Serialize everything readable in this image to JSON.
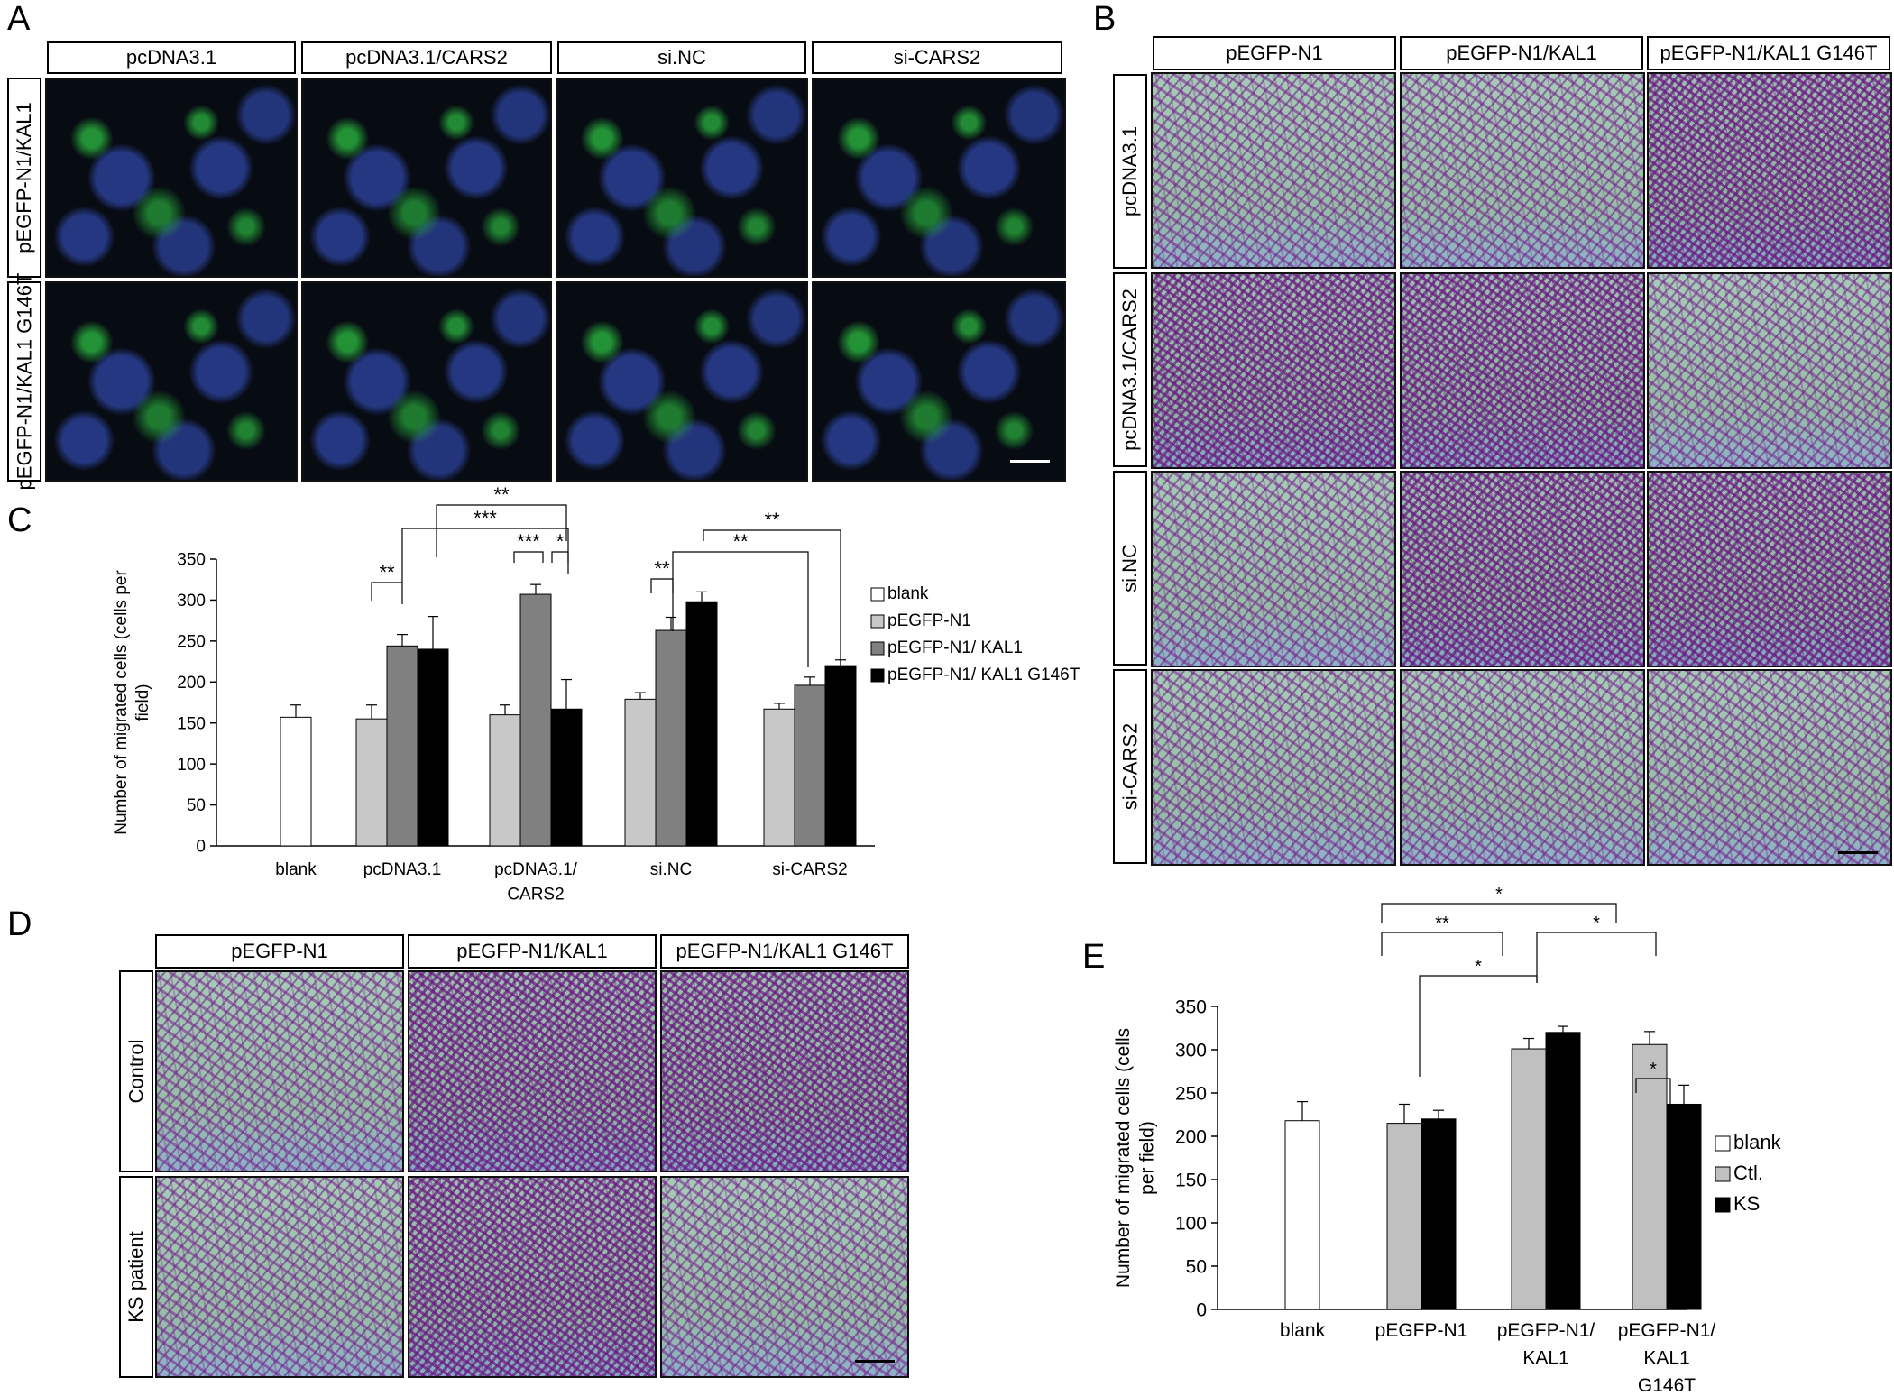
{
  "panels": {
    "A": {
      "label": "A",
      "columns": [
        "pcDNA3.1",
        "pcDNA3.1/CARS2",
        "si.NC",
        "si-CARS2"
      ],
      "rows": [
        "pEGFP-N1/KAL1",
        "pEGFP-N1/KAL1 G146T"
      ]
    },
    "B": {
      "label": "B",
      "columns": [
        "pEGFP-N1",
        "pEGFP-N1/KAL1",
        "pEGFP-N1/KAL1 G146T"
      ],
      "rows": [
        "pcDNA3.1",
        "pcDNA3.1/CARS2",
        "si.NC",
        "si-CARS2"
      ]
    },
    "C": {
      "label": "C"
    },
    "D": {
      "label": "D",
      "columns": [
        "pEGFP-N1",
        "pEGFP-N1/KAL1",
        "pEGFP-N1/KAL1 G146T"
      ],
      "rows": [
        "Control",
        "KS patient"
      ]
    },
    "E": {
      "label": "E"
    }
  },
  "chart_data": [
    {
      "id": "C",
      "type": "bar",
      "ylabel": "Number of migrated cells (cells per field)",
      "xlabel": "",
      "ylim": [
        0,
        350
      ],
      "yticks": [
        0,
        50,
        100,
        150,
        200,
        250,
        300,
        350
      ],
      "groups": [
        {
          "label": "blank",
          "bars": [
            {
              "series": "blank",
              "value": 157,
              "err": 15
            }
          ]
        },
        {
          "label": "pcDNA3.1",
          "bars": [
            {
              "series": "pEGFP-N1",
              "value": 155,
              "err": 17
            },
            {
              "series": "pEGFP-N1/ KAL1",
              "value": 244,
              "err": 14
            },
            {
              "series": "pEGFP-N1/ KAL1 G146T",
              "value": 240,
              "err": 40
            }
          ]
        },
        {
          "label": "pcDNA3.1/ CARS2",
          "bars": [
            {
              "series": "pEGFP-N1",
              "value": 160,
              "err": 12
            },
            {
              "series": "pEGFP-N1/ KAL1",
              "value": 307,
              "err": 12
            },
            {
              "series": "pEGFP-N1/ KAL1 G146T",
              "value": 167,
              "err": 36
            }
          ]
        },
        {
          "label": "si.NC",
          "bars": [
            {
              "series": "pEGFP-N1",
              "value": 179,
              "err": 8
            },
            {
              "series": "pEGFP-N1/ KAL1",
              "value": 263,
              "err": 16
            },
            {
              "series": "pEGFP-N1/ KAL1 G146T",
              "value": 298,
              "err": 12
            }
          ]
        },
        {
          "label": "si-CARS2",
          "bars": [
            {
              "series": "pEGFP-N1",
              "value": 167,
              "err": 7
            },
            {
              "series": "pEGFP-N1/ KAL1",
              "value": 196,
              "err": 10
            },
            {
              "series": "pEGFP-N1/ KAL1 G146T",
              "value": 220,
              "err": 7
            }
          ]
        }
      ],
      "legend": [
        {
          "name": "blank",
          "color": "#ffffff"
        },
        {
          "name": "pEGFP-N1",
          "color": "#c8c8c8"
        },
        {
          "name": "pEGFP-N1/ KAL1",
          "color": "#808080"
        },
        {
          "name": "pEGFP-N1/ KAL1 G146T",
          "color": "#000000"
        }
      ],
      "legend_position": "right",
      "significance": [
        "**",
        "***",
        "**",
        "***",
        "*",
        "**",
        "**",
        "**"
      ]
    },
    {
      "id": "E",
      "type": "bar",
      "ylabel": "Number of migrated cells (cells per field)",
      "xlabel": "",
      "ylim": [
        0,
        350
      ],
      "yticks": [
        0,
        50,
        100,
        150,
        200,
        250,
        300,
        350
      ],
      "groups": [
        {
          "label": "blank",
          "bars": [
            {
              "series": "blank",
              "value": 218,
              "err": 22
            }
          ]
        },
        {
          "label": "pEGFP-N1",
          "bars": [
            {
              "series": "Ctl.",
              "value": 215,
              "err": 22
            },
            {
              "series": "KS",
              "value": 220,
              "err": 10
            }
          ]
        },
        {
          "label": "pEGFP-N1/ KAL1",
          "bars": [
            {
              "series": "Ctl.",
              "value": 301,
              "err": 12
            },
            {
              "series": "KS",
              "value": 320,
              "err": 7
            }
          ]
        },
        {
          "label": "pEGFP-N1/ KAL1 G146T",
          "bars": [
            {
              "series": "Ctl.",
              "value": 306,
              "err": 15
            },
            {
              "series": "KS",
              "value": 237,
              "err": 22
            }
          ]
        }
      ],
      "legend": [
        {
          "name": "blank",
          "color": "#ffffff"
        },
        {
          "name": "Ctl.",
          "color": "#c0c0c0"
        },
        {
          "name": "KS",
          "color": "#000000"
        }
      ],
      "legend_position": "right",
      "significance": [
        "*",
        "**",
        "*",
        "*",
        "*"
      ]
    }
  ]
}
